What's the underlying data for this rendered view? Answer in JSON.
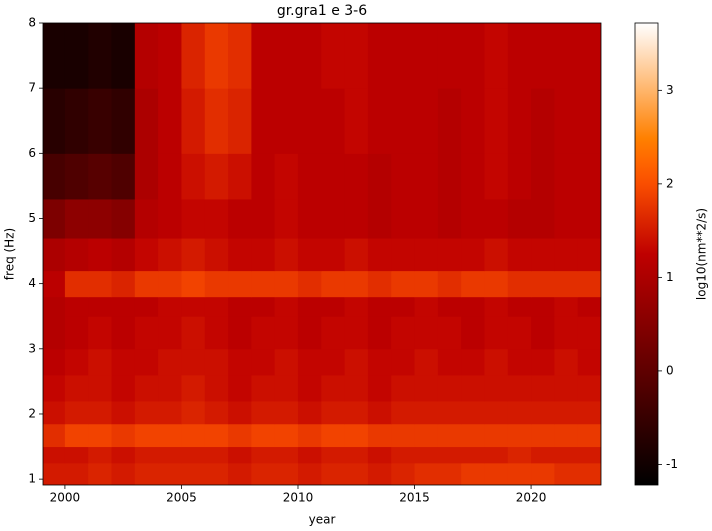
{
  "chart_data": {
    "type": "heatmap",
    "title": "gr.gra1 e 3-6",
    "x_label": "year",
    "y_label": "freq (Hz)",
    "colorbar_label": "log10(nm**2/s)",
    "colormap": "gist_heat",
    "xlim": [
      1999.06,
      2023.0
    ],
    "xticks": [
      2000,
      2005,
      2010,
      2015,
      2020
    ],
    "ylim": [
      0.91,
      8.0
    ],
    "yticks": [
      1,
      2,
      3,
      4,
      5,
      6,
      7,
      8
    ],
    "clim": [
      -1.22,
      3.72
    ],
    "cticks": [
      -1,
      0,
      1,
      2,
      3
    ],
    "x_bins": [
      1999,
      2000,
      2001,
      2002,
      2003,
      2004,
      2005,
      2006,
      2007,
      2008,
      2009,
      2010,
      2011,
      2012,
      2013,
      2014,
      2015,
      2016,
      2017,
      2018,
      2019,
      2020,
      2021,
      2022,
      2023
    ],
    "y_bins": [
      0.91,
      1.25,
      1.5,
      1.85,
      2.2,
      2.6,
      3.0,
      3.5,
      3.8,
      4.2,
      4.7,
      5.3,
      6.0,
      7.0,
      8.0
    ],
    "values": [
      [
        1.5,
        1.5,
        1.6,
        1.5,
        1.6,
        1.6,
        1.6,
        1.6,
        1.5,
        1.6,
        1.6,
        1.5,
        1.6,
        1.6,
        1.5,
        1.6,
        1.7,
        1.7,
        1.8,
        1.8,
        1.8,
        1.8,
        1.7,
        1.7
      ],
      [
        1.4,
        1.4,
        1.5,
        1.4,
        1.5,
        1.5,
        1.5,
        1.5,
        1.4,
        1.5,
        1.5,
        1.4,
        1.5,
        1.5,
        1.4,
        1.5,
        1.5,
        1.5,
        1.5,
        1.5,
        1.6,
        1.5,
        1.5,
        1.5
      ],
      [
        1.7,
        1.9,
        1.9,
        1.8,
        1.9,
        1.9,
        1.9,
        1.9,
        1.8,
        1.9,
        1.9,
        1.8,
        1.9,
        1.9,
        1.8,
        1.8,
        1.8,
        1.8,
        1.8,
        1.8,
        1.8,
        1.8,
        1.8,
        1.8
      ],
      [
        1.4,
        1.5,
        1.5,
        1.4,
        1.5,
        1.5,
        1.6,
        1.5,
        1.4,
        1.5,
        1.5,
        1.4,
        1.5,
        1.5,
        1.4,
        1.5,
        1.5,
        1.5,
        1.5,
        1.5,
        1.5,
        1.5,
        1.5,
        1.5
      ],
      [
        1.3,
        1.4,
        1.4,
        1.3,
        1.4,
        1.4,
        1.5,
        1.4,
        1.3,
        1.4,
        1.4,
        1.3,
        1.4,
        1.4,
        1.3,
        1.4,
        1.4,
        1.4,
        1.4,
        1.4,
        1.4,
        1.4,
        1.4,
        1.4
      ],
      [
        1.2,
        1.3,
        1.4,
        1.3,
        1.3,
        1.4,
        1.4,
        1.4,
        1.3,
        1.3,
        1.4,
        1.3,
        1.3,
        1.4,
        1.3,
        1.3,
        1.4,
        1.3,
        1.3,
        1.4,
        1.3,
        1.3,
        1.4,
        1.3
      ],
      [
        1.1,
        1.2,
        1.3,
        1.2,
        1.3,
        1.3,
        1.4,
        1.3,
        1.2,
        1.3,
        1.3,
        1.2,
        1.3,
        1.3,
        1.2,
        1.3,
        1.3,
        1.3,
        1.2,
        1.3,
        1.3,
        1.2,
        1.3,
        1.3
      ],
      [
        1.1,
        1.2,
        1.2,
        1.2,
        1.2,
        1.3,
        1.3,
        1.3,
        1.2,
        1.2,
        1.3,
        1.2,
        1.2,
        1.3,
        1.2,
        1.2,
        1.3,
        1.2,
        1.2,
        1.3,
        1.2,
        1.2,
        1.3,
        1.2
      ],
      [
        1.2,
        1.7,
        1.7,
        1.6,
        1.8,
        1.8,
        1.9,
        1.8,
        1.8,
        1.8,
        1.8,
        1.7,
        1.8,
        1.8,
        1.7,
        1.8,
        1.8,
        1.7,
        1.8,
        1.8,
        1.7,
        1.7,
        1.7,
        1.7
      ],
      [
        1.0,
        1.1,
        1.2,
        1.1,
        1.3,
        1.4,
        1.5,
        1.4,
        1.3,
        1.3,
        1.4,
        1.3,
        1.3,
        1.4,
        1.3,
        1.3,
        1.3,
        1.3,
        1.3,
        1.4,
        1.3,
        1.3,
        1.3,
        1.3
      ],
      [
        0.4,
        0.6,
        0.6,
        0.5,
        1.1,
        1.2,
        1.3,
        1.3,
        1.2,
        1.2,
        1.3,
        1.2,
        1.2,
        1.2,
        1.1,
        1.2,
        1.2,
        1.1,
        1.2,
        1.2,
        1.1,
        1.1,
        1.2,
        1.2
      ],
      [
        -0.3,
        -0.2,
        -0.1,
        -0.2,
        1.0,
        1.2,
        1.4,
        1.5,
        1.4,
        1.2,
        1.3,
        1.2,
        1.2,
        1.2,
        1.1,
        1.2,
        1.2,
        1.1,
        1.2,
        1.3,
        1.2,
        1.1,
        1.2,
        1.2
      ],
      [
        -0.7,
        -0.6,
        -0.5,
        -0.6,
        1.0,
        1.2,
        1.5,
        1.7,
        1.6,
        1.2,
        1.2,
        1.2,
        1.2,
        1.3,
        1.2,
        1.2,
        1.2,
        1.1,
        1.2,
        1.3,
        1.2,
        1.1,
        1.2,
        1.2
      ],
      [
        -0.9,
        -0.9,
        -0.8,
        -0.9,
        1.1,
        1.2,
        1.6,
        1.8,
        1.7,
        1.2,
        1.2,
        1.2,
        1.3,
        1.3,
        1.2,
        1.2,
        1.2,
        1.2,
        1.2,
        1.3,
        1.2,
        1.2,
        1.2,
        1.2
      ]
    ]
  }
}
